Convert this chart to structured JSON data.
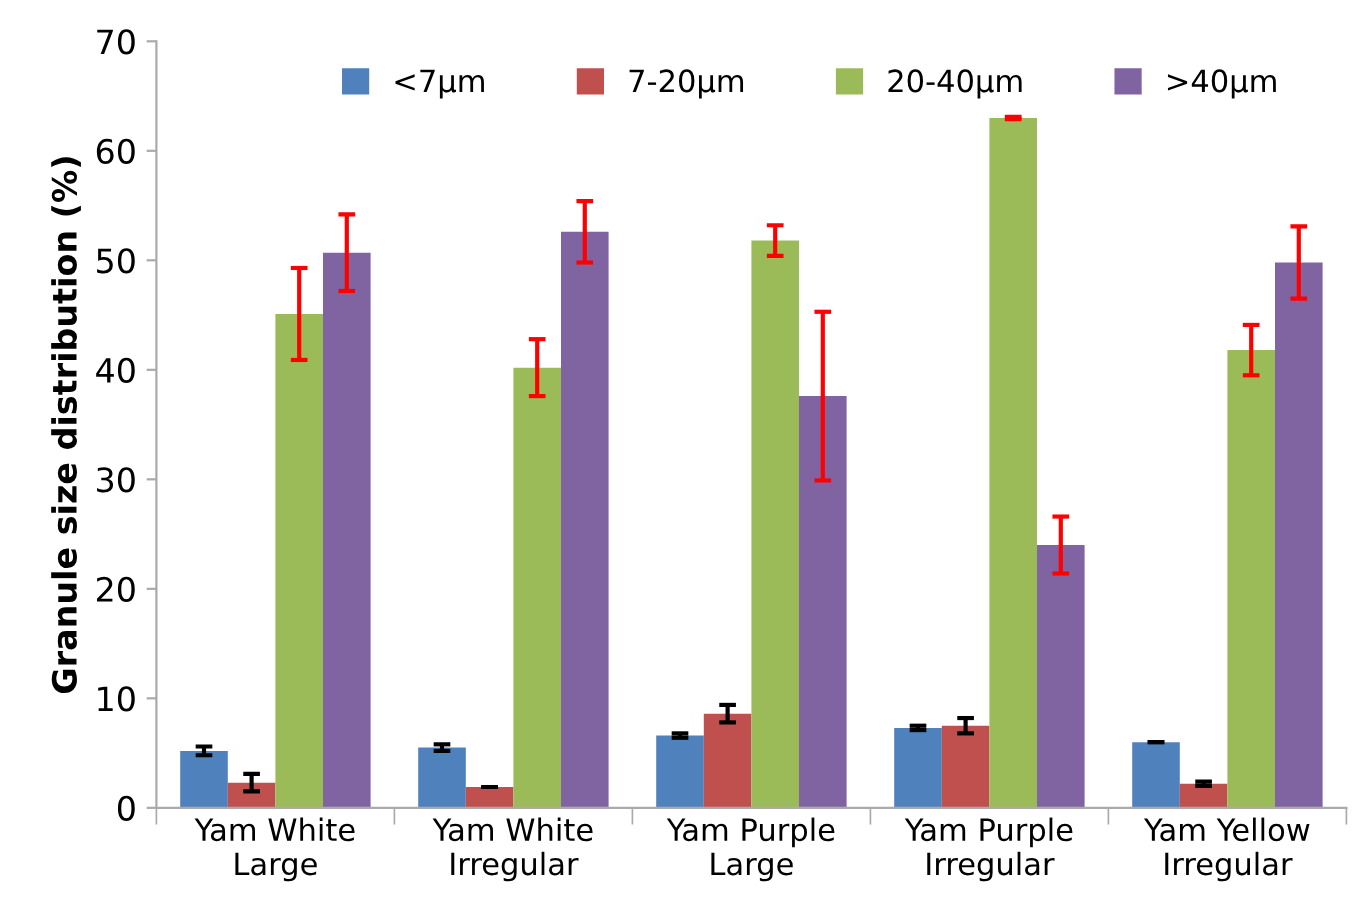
{
  "chart_data": {
    "type": "bar",
    "ylabel": "Granule size distribution (%)",
    "categories": [
      "Yam White\nLarge",
      "Yam White\nIrregular",
      "Yam Purple\nLarge",
      "Yam Purple\nIrregular",
      "Yam Yellow\nIrregular"
    ],
    "series": [
      {
        "name": "<7μm",
        "color": "#4f81bd",
        "values": [
          5.2,
          5.5,
          6.6,
          7.3,
          6.0
        ],
        "errors": [
          0.4,
          0.3,
          0.2,
          0.2,
          null
        ]
      },
      {
        "name": "7-20μm",
        "color": "#c0504d",
        "values": [
          2.3,
          1.9,
          8.6,
          7.5,
          2.2
        ],
        "errors": [
          0.8,
          null,
          0.8,
          0.7,
          0.2
        ]
      },
      {
        "name": "20-40μm",
        "color": "#9bbb59",
        "values": [
          45.1,
          40.2,
          51.8,
          63.0,
          41.8
        ],
        "errors": [
          4.2,
          2.6,
          1.4,
          0.1,
          2.3
        ]
      },
      {
        "name": ">40μm",
        "color": "#8064a2",
        "values": [
          50.7,
          52.6,
          37.6,
          24.0,
          49.8
        ],
        "errors": [
          3.5,
          2.8,
          7.7,
          2.6,
          3.3
        ]
      }
    ],
    "ylim": [
      0,
      70
    ],
    "yticks": [
      0,
      10,
      20,
      30,
      40,
      50,
      60,
      70
    ],
    "grid": false,
    "legend": "top"
  }
}
